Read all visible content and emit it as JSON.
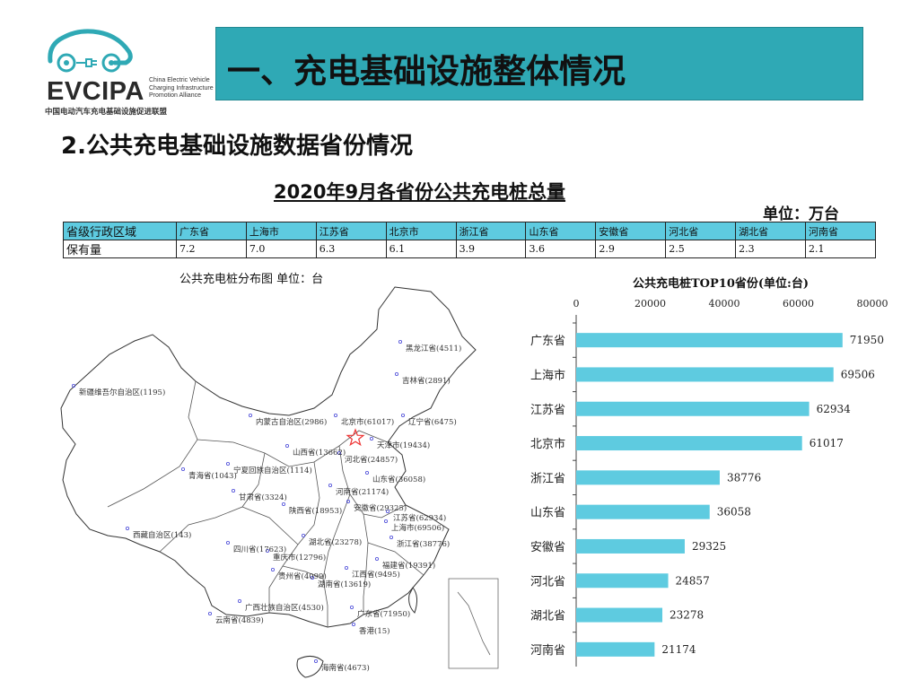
{
  "logo": {
    "brand": "EVCIPA",
    "brand_en": "China Electric Vehicle Charging Infrastructure Promotion Alliance",
    "brand_cn": "中国电动汽车充电基础设施促进联盟",
    "accent": "#2fa9b5"
  },
  "header": {
    "title": "一、充电基础设施整体情况",
    "bar_color": "#2fa9b5"
  },
  "section_title": "2.公共充电基础设施数据省份情况",
  "table": {
    "title": "2020年9月各省份公共充电桩总量",
    "unit": "单位：万台",
    "header_label": "省级行政区域",
    "row_label": "保有量",
    "provinces": [
      "广东省",
      "上海市",
      "江苏省",
      "北京市",
      "浙江省",
      "山东省",
      "安徽省",
      "河北省",
      "湖北省",
      "河南省"
    ],
    "values": [
      "7.2",
      "7.0",
      "6.3",
      "6.1",
      "3.9",
      "3.6",
      "2.9",
      "2.5",
      "2.3",
      "2.1"
    ],
    "header_color": "#5ecbe0"
  },
  "map": {
    "title": "公共充电桩分布图   单位：台",
    "labels": [
      {
        "text": "黑龙江省(4511)"
      },
      {
        "text": "吉林省(2891)"
      },
      {
        "text": "新疆维吾尔自治区(1195)"
      },
      {
        "text": "内蒙古自治区(2986)"
      },
      {
        "text": "北京市(61017)"
      },
      {
        "text": "辽宁省(6475)"
      },
      {
        "text": "天津市(19434)"
      },
      {
        "text": "山西省(13662)"
      },
      {
        "text": "河北省(24857)"
      },
      {
        "text": "青海省(1043)"
      },
      {
        "text": "宁夏回族自治区(1114)"
      },
      {
        "text": "山东省(36058)"
      },
      {
        "text": "甘肃省(3324)"
      },
      {
        "text": "河南省(21174)"
      },
      {
        "text": "陕西省(18953)"
      },
      {
        "text": "安徽省(29325)"
      },
      {
        "text": "江苏省(62934)"
      },
      {
        "text": "上海市(69506)"
      },
      {
        "text": "西藏自治区(143)"
      },
      {
        "text": "四川省(17623)"
      },
      {
        "text": "湖北省(23278)"
      },
      {
        "text": "浙江省(38776)"
      },
      {
        "text": "重庆市(12796)"
      },
      {
        "text": "福建省(19391)"
      },
      {
        "text": "贵州省(4099)"
      },
      {
        "text": "江西省(9495)"
      },
      {
        "text": "湖南省(13619)"
      },
      {
        "text": "广西壮族自治区(4530)"
      },
      {
        "text": "广东省(71950)"
      },
      {
        "text": "云南省(4839)"
      },
      {
        "text": "香港(15)"
      },
      {
        "text": "海南省(4673)"
      }
    ]
  },
  "chart_data": {
    "type": "bar",
    "orientation": "horizontal",
    "title": "公共充电桩TOP10省份(单位:台)",
    "categories": [
      "广东省",
      "上海市",
      "江苏省",
      "北京市",
      "浙江省",
      "山东省",
      "安徽省",
      "河北省",
      "湖北省",
      "河南省"
    ],
    "values": [
      71950,
      69506,
      62934,
      61017,
      38776,
      36058,
      29325,
      24857,
      23278,
      21174
    ],
    "value_labels": [
      "71950",
      "69506",
      "62934",
      "61017",
      "38776",
      "36058",
      "29325",
      "24857",
      "23278",
      "21174"
    ],
    "xlim": [
      0,
      80000
    ],
    "xticks": [
      "0",
      "20000",
      "40000",
      "60000",
      "80000"
    ],
    "xlabel": "",
    "ylabel": "",
    "axis_position": "top",
    "bar_color": "#5ecbe0",
    "grid": false
  }
}
